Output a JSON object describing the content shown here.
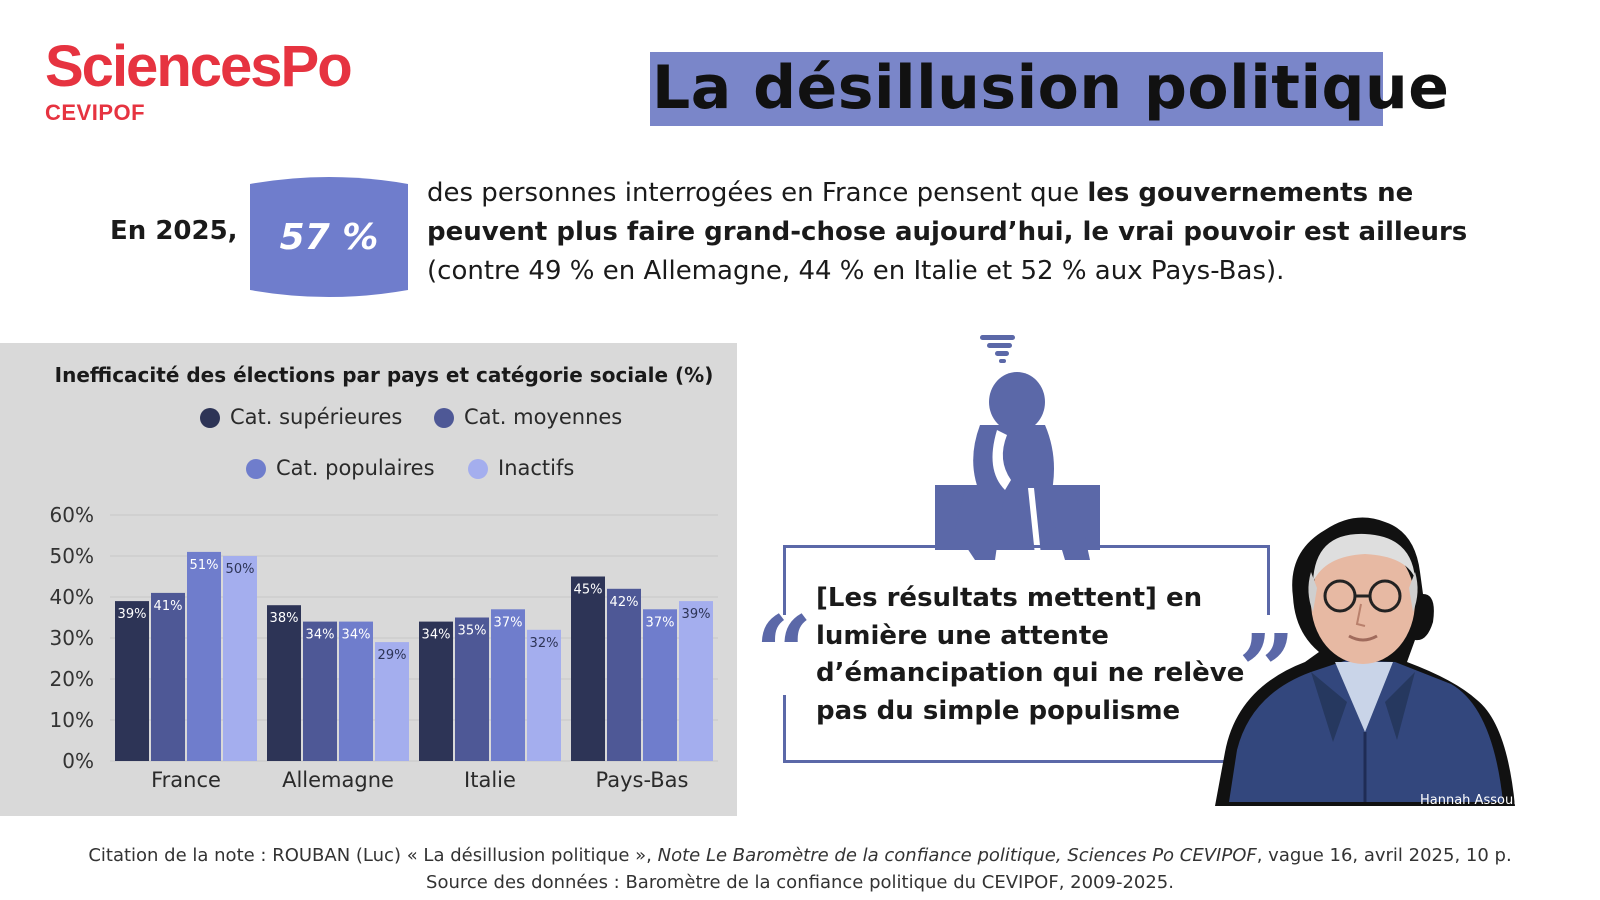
{
  "logo": {
    "main": "SciencesPo",
    "sub": "CEVIPOF"
  },
  "title": "La désillusion politique",
  "stat": {
    "lead": "En 2025,",
    "value": "57 %",
    "text_pre": "des personnes interrogées en France pensent que ",
    "text_bold": "les gouvernements ne peuvent plus faire grand-chose aujourd’hui, le vrai pouvoir est ailleurs",
    "text_post": " (contre 49 % en Allemagne, 44 % en Italie et 52 % aux Pays-Bas)."
  },
  "chart_data": {
    "type": "bar",
    "title": "Inefficacité des élections par pays et catégorie sociale (%)",
    "categories": [
      "France",
      "Allemagne",
      "Italie",
      "Pays-Bas"
    ],
    "series": [
      {
        "name": "Cat. supérieures",
        "values": [
          39,
          38,
          34,
          45
        ],
        "color": "#2d3456"
      },
      {
        "name": "Cat. moyennes",
        "values": [
          41,
          34,
          35,
          42
        ],
        "color": "#4e5896"
      },
      {
        "name": "Cat. populaires",
        "values": [
          51,
          34,
          37,
          37
        ],
        "color": "#6f7dcc"
      },
      {
        "name": "Inactifs",
        "values": [
          50,
          29,
          32,
          39
        ],
        "color": "#a4aeee"
      }
    ],
    "ylim": [
      0,
      60
    ],
    "yticks": [
      "0%",
      "10%",
      "20%",
      "30%",
      "40%",
      "50%",
      "60%"
    ],
    "legend": "top",
    "grid": true
  },
  "quote": {
    "text": "[Les résultats mettent] en lumière une attente d’émancipation qui ne relève pas du simple populisme",
    "open_mark": "“",
    "close_mark": "”"
  },
  "photo_credit": "Hannah Assouline",
  "citation": {
    "line1_pre": "Citation de la note : ROUBAN (Luc) « La désillusion politique », ",
    "line1_italic": "Note Le Baromètre de la confiance politique, Sciences Po CEVIPOF",
    "line1_post": ", vague 16, avril 2025, 10 p.",
    "line2": "Source des données : Baromètre de la confiance politique du CEVIPOF, 2009-2025."
  },
  "colors": {
    "accent": "#7a86c9",
    "brand_red": "#e63340",
    "dark_blue": "#5b68a8"
  },
  "icons": [
    "stressed-person-icon",
    "quote-open-icon",
    "quote-close-icon",
    "portrait-photo"
  ]
}
